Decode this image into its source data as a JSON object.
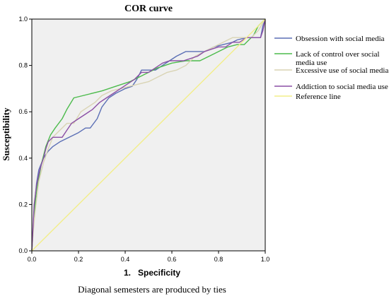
{
  "chart_data": {
    "type": "line",
    "title": "COR curve",
    "xlabel": "1.   Specificity",
    "ylabel": "Susceptibility",
    "footnote": "Diagonal semesters are produced by ties",
    "xlim": [
      0.0,
      1.0
    ],
    "ylim": [
      0.0,
      1.0
    ],
    "xticks": [
      "0.0",
      "0.2",
      "0.4",
      "0.6",
      "0.8",
      "1.0"
    ],
    "yticks": [
      "0.0",
      "0.2",
      "0.4",
      "0.6",
      "0.8",
      "1.0"
    ],
    "grid": false,
    "plot_background": "#f0f0f0",
    "legend_position": "right",
    "series": [
      {
        "name": "Obsession with social media",
        "color": "#5b6fb5",
        "x": [
          0.0,
          0.01,
          0.02,
          0.03,
          0.05,
          0.07,
          0.09,
          0.12,
          0.16,
          0.2,
          0.23,
          0.25,
          0.28,
          0.3,
          0.33,
          0.36,
          0.4,
          0.43,
          0.45,
          0.47,
          0.5,
          0.53,
          0.56,
          0.59,
          0.62,
          0.66,
          0.7,
          0.74,
          0.78,
          0.82,
          0.86,
          0.88,
          0.92,
          0.94,
          0.96,
          0.98,
          0.99,
          1.0
        ],
        "y": [
          0.0,
          0.18,
          0.29,
          0.35,
          0.4,
          0.43,
          0.45,
          0.47,
          0.49,
          0.51,
          0.53,
          0.53,
          0.57,
          0.62,
          0.66,
          0.68,
          0.7,
          0.71,
          0.74,
          0.78,
          0.78,
          0.78,
          0.8,
          0.82,
          0.84,
          0.86,
          0.86,
          0.86,
          0.88,
          0.89,
          0.9,
          0.91,
          0.92,
          0.92,
          0.92,
          0.92,
          0.97,
          1.0
        ]
      },
      {
        "name": "Lack of control over social media use",
        "color": "#4cbb4c",
        "x": [
          0.0,
          0.01,
          0.02,
          0.04,
          0.06,
          0.08,
          0.1,
          0.13,
          0.15,
          0.18,
          0.3,
          0.36,
          0.42,
          0.48,
          0.54,
          0.6,
          0.66,
          0.72,
          0.78,
          0.84,
          0.88,
          0.91,
          0.93,
          0.95,
          0.97,
          1.0
        ],
        "y": [
          0.0,
          0.15,
          0.26,
          0.37,
          0.45,
          0.5,
          0.53,
          0.57,
          0.61,
          0.66,
          0.69,
          0.71,
          0.73,
          0.76,
          0.79,
          0.81,
          0.82,
          0.82,
          0.85,
          0.88,
          0.89,
          0.89,
          0.91,
          0.93,
          0.97,
          1.0
        ]
      },
      {
        "name": "Excessive use of social media",
        "color": "#d9d4b4",
        "x": [
          0.0,
          0.01,
          0.02,
          0.03,
          0.05,
          0.07,
          0.09,
          0.12,
          0.15,
          0.18,
          0.21,
          0.24,
          0.27,
          0.3,
          0.34,
          0.38,
          0.42,
          0.46,
          0.5,
          0.54,
          0.58,
          0.62,
          0.66,
          0.7,
          0.74,
          0.78,
          0.82,
          0.86,
          0.9,
          0.94,
          0.97,
          1.0
        ],
        "y": [
          0.0,
          0.13,
          0.22,
          0.3,
          0.38,
          0.44,
          0.49,
          0.52,
          0.55,
          0.55,
          0.6,
          0.62,
          0.64,
          0.67,
          0.69,
          0.7,
          0.71,
          0.72,
          0.73,
          0.75,
          0.77,
          0.78,
          0.8,
          0.84,
          0.86,
          0.88,
          0.9,
          0.92,
          0.92,
          0.92,
          0.95,
          1.0
        ]
      },
      {
        "name": "Addiction to social media use",
        "color": "#8b4fa5",
        "x": [
          0.0,
          0.01,
          0.02,
          0.03,
          0.04,
          0.05,
          0.06,
          0.07,
          0.09,
          0.11,
          0.13,
          0.15,
          0.17,
          0.2,
          0.23,
          0.26,
          0.29,
          0.32,
          0.35,
          0.38,
          0.41,
          0.44,
          0.47,
          0.5,
          0.53,
          0.56,
          0.59,
          0.62,
          0.65,
          0.68,
          0.71,
          0.74,
          0.77,
          0.8,
          0.83,
          0.86,
          0.89,
          0.92,
          0.95,
          0.98,
          0.99,
          1.0
        ],
        "y": [
          0.0,
          0.2,
          0.28,
          0.33,
          0.37,
          0.4,
          0.44,
          0.47,
          0.49,
          0.49,
          0.49,
          0.52,
          0.55,
          0.57,
          0.59,
          0.61,
          0.64,
          0.66,
          0.68,
          0.7,
          0.72,
          0.74,
          0.77,
          0.77,
          0.79,
          0.81,
          0.82,
          0.82,
          0.82,
          0.83,
          0.84,
          0.86,
          0.87,
          0.88,
          0.88,
          0.9,
          0.9,
          0.92,
          0.92,
          0.92,
          0.95,
          1.0
        ]
      },
      {
        "name": "Reference line",
        "color": "#f2ee8a",
        "x": [
          0.0,
          1.0
        ],
        "y": [
          0.0,
          1.0
        ]
      }
    ]
  }
}
